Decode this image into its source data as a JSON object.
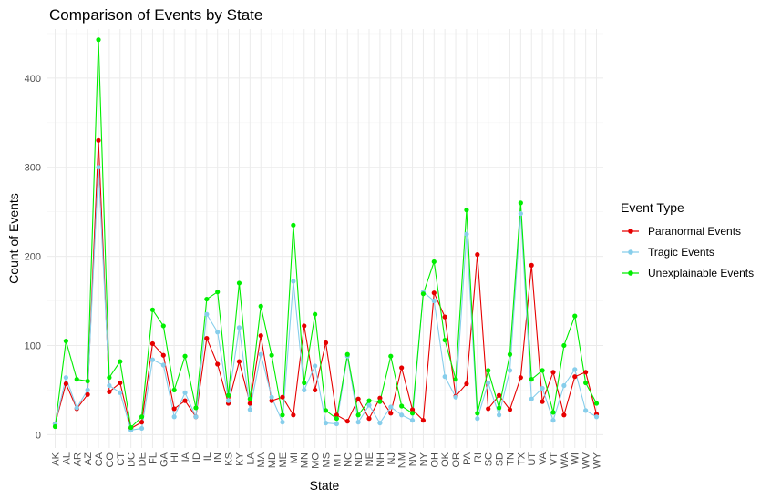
{
  "chart_data": {
    "type": "line",
    "title": "Comparison of Events by State",
    "xlabel": "State",
    "ylabel": "Count of Events",
    "ylim": [
      -15,
      455
    ],
    "yticks": [
      0,
      100,
      200,
      300,
      400
    ],
    "grid": true,
    "legend_title": "Event Type",
    "legend_position": "right",
    "categories": [
      "AK",
      "AL",
      "AR",
      "AZ",
      "CA",
      "CO",
      "CT",
      "DC",
      "DE",
      "FL",
      "GA",
      "HI",
      "IA",
      "ID",
      "IL",
      "IN",
      "KS",
      "KY",
      "LA",
      "MA",
      "MD",
      "ME",
      "MI",
      "MN",
      "MO",
      "MS",
      "MT",
      "NC",
      "ND",
      "NE",
      "NH",
      "NJ",
      "NM",
      "NV",
      "NY",
      "OH",
      "OK",
      "OR",
      "PA",
      "RI",
      "SC",
      "SD",
      "TN",
      "TX",
      "UT",
      "VA",
      "VT",
      "WA",
      "WI",
      "WV",
      "WY"
    ],
    "series": [
      {
        "name": "Paranormal Events",
        "color": "#e60000",
        "values": [
          12,
          57,
          29,
          45,
          330,
          48,
          58,
          7,
          14,
          102,
          89,
          29,
          38,
          20,
          108,
          79,
          35,
          82,
          35,
          111,
          38,
          42,
          22,
          122,
          50,
          103,
          22,
          15,
          40,
          18,
          41,
          24,
          75,
          28,
          16,
          159,
          132,
          43,
          57,
          202,
          29,
          44,
          28,
          64,
          190,
          37,
          70,
          22,
          65,
          70,
          23
        ]
      },
      {
        "name": "Tragic Events",
        "color": "#87ceeb",
        "values": [
          12,
          64,
          30,
          50,
          300,
          55,
          47,
          5,
          7,
          84,
          78,
          20,
          47,
          20,
          135,
          115,
          38,
          120,
          28,
          90,
          42,
          14,
          172,
          50,
          77,
          13,
          12,
          88,
          14,
          33,
          13,
          31,
          22,
          16,
          160,
          150,
          65,
          42,
          225,
          18,
          58,
          22,
          72,
          248,
          40,
          52,
          16,
          55,
          73,
          27,
          20
        ]
      },
      {
        "name": "Unexplainable Events",
        "color": "#00ee00",
        "values": [
          9,
          105,
          62,
          60,
          443,
          64,
          82,
          8,
          20,
          140,
          122,
          50,
          88,
          30,
          152,
          160,
          44,
          170,
          40,
          144,
          89,
          22,
          235,
          58,
          135,
          27,
          18,
          90,
          22,
          38,
          37,
          88,
          32,
          24,
          158,
          194,
          106,
          62,
          252,
          24,
          72,
          30,
          90,
          260,
          62,
          72,
          25,
          100,
          133,
          58,
          35
        ]
      }
    ]
  }
}
